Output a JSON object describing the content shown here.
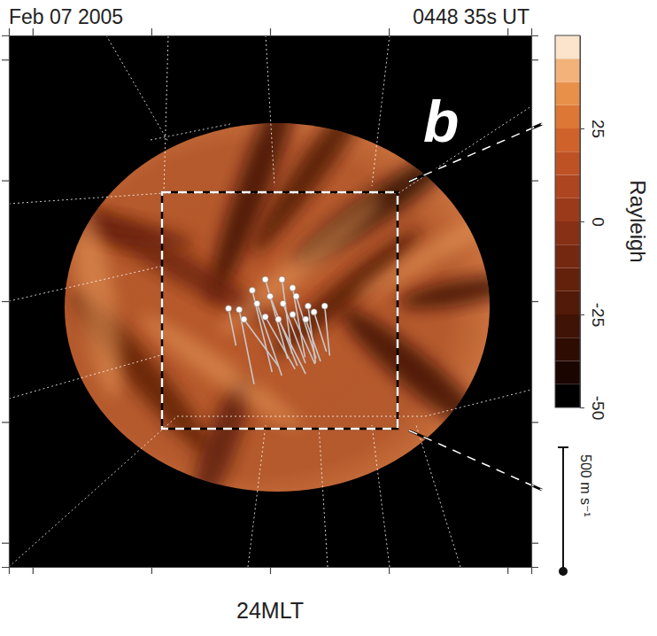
{
  "chart_data": {
    "type": "vector",
    "title": "Feb 07 2005",
    "subtitle": "0448 35s UT",
    "panel_label": "b",
    "x_label": "24MLT",
    "xlim": [
      -2.2,
      2.2
    ],
    "ylim": [
      -2.2,
      2.2
    ],
    "xticks": [
      -2,
      -1,
      0,
      1,
      2
    ],
    "yticks": [
      -2,
      -1,
      0,
      1,
      2
    ],
    "tick_labels": false,
    "vectors": {
      "x": [
        -0.26,
        -0.15,
        -0.04,
        0.1,
        0.19,
        -0.35,
        -0.11,
        0.0,
        0.11,
        0.22,
        0.32,
        0.46,
        -0.22,
        -0.04,
        0.07,
        0.19,
        0.3,
        0.37
      ],
      "y": [
        -0.07,
        0.09,
        0.18,
        0.18,
        0.11,
        -0.06,
        -0.02,
        0.04,
        -0.02,
        0.04,
        -0.04,
        -0.04,
        -0.15,
        -0.13,
        -0.15,
        -0.11,
        -0.15,
        -0.09
      ],
      "u": [
        60,
        80,
        90,
        40,
        50,
        30,
        100,
        110,
        90,
        80,
        30,
        20,
        140,
        120,
        110,
        90,
        60,
        50
      ],
      "v": [
        -300,
        -330,
        -320,
        -300,
        -280,
        -150,
        -290,
        -280,
        -240,
        -250,
        -230,
        -200,
        -190,
        -210,
        -220,
        -200,
        -170,
        -160
      ]
    },
    "vector_scale": {
      "value": 500,
      "label": "500 m s⁻¹"
    },
    "colorbar": {
      "label": "Rayleigh",
      "lim": [
        -50,
        50
      ],
      "ticks": [
        25,
        0,
        -25,
        -50
      ],
      "bins": [
        -50,
        -43.75,
        -37.5,
        -31.25,
        -25,
        -18.75,
        -12.5,
        -6.25,
        0,
        6.25,
        12.5,
        18.75,
        25,
        31.25,
        37.5,
        43.75,
        50
      ],
      "colors": [
        "#000000",
        "#1a0500",
        "#2e0c02",
        "#3f1305",
        "#521a08",
        "#63200b",
        "#752810",
        "#873016",
        "#9a3a1a",
        "#ad4520",
        "#bf5225",
        "#cf622b",
        "#dc7735",
        "#e89049",
        "#f2b27a",
        "#fbe3cc"
      ]
    }
  }
}
